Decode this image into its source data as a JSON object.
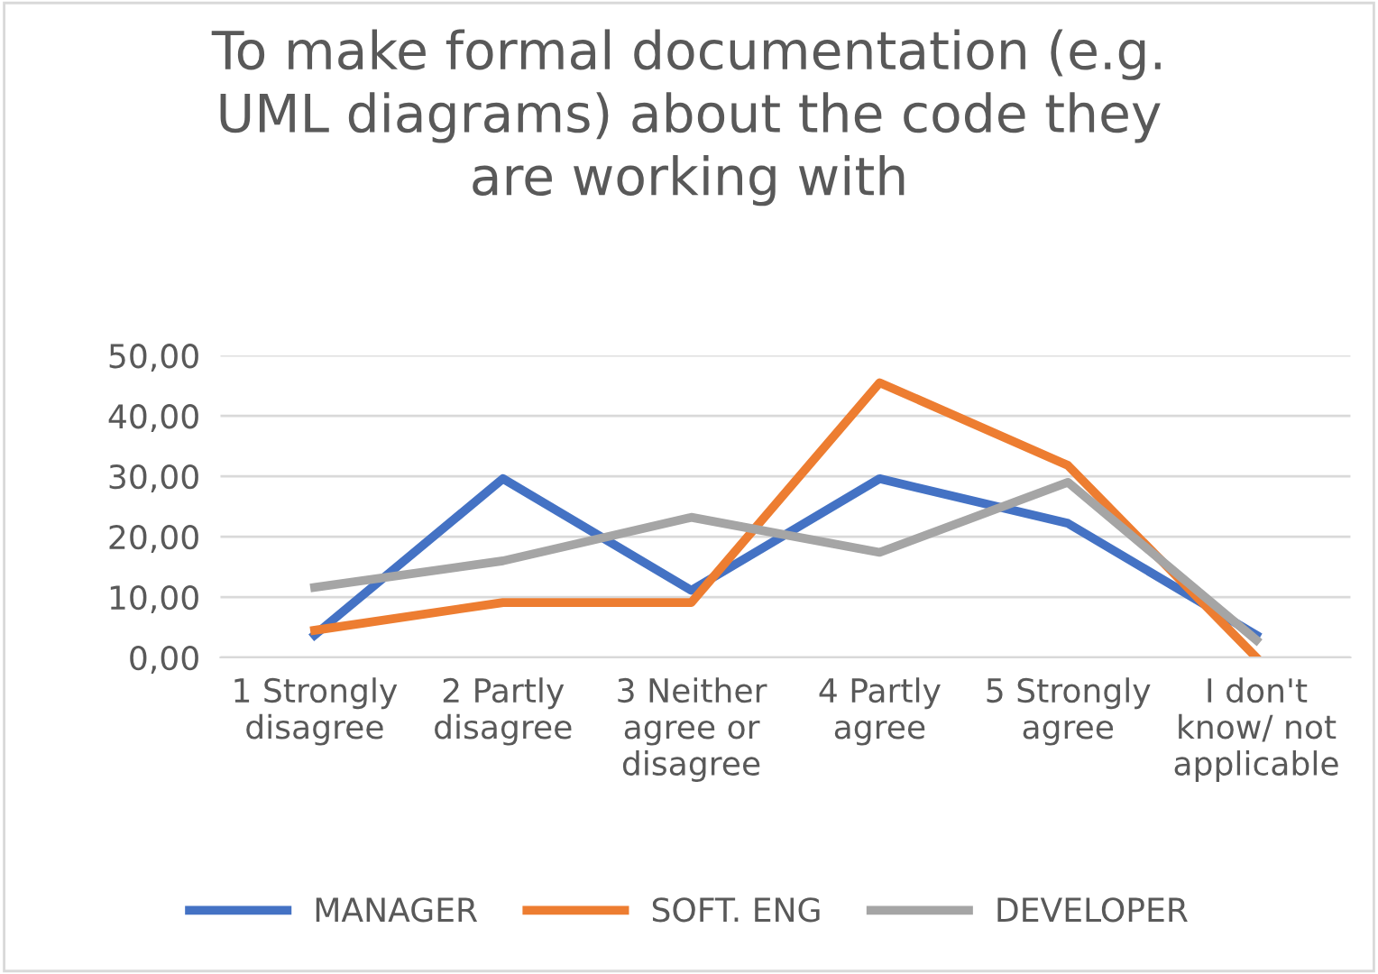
{
  "chart_data": {
    "type": "line",
    "title": "To make formal documentation (e.g. UML diagrams) about the code they are working with",
    "categories": [
      "1 Strongly disagree",
      "2 Partly disagree",
      "3 Neither agree or disagree",
      "4 Partly agree",
      "5 Strongly agree",
      "I don't know/ not applicable"
    ],
    "series": [
      {
        "name": "MANAGER",
        "color": "#4472c4",
        "values": [
          3.7,
          29.6,
          11.1,
          29.6,
          22.2,
          3.7
        ]
      },
      {
        "name": "SOFT. ENG",
        "color": "#ed7d31",
        "values": [
          4.5,
          9.1,
          9.1,
          45.5,
          31.8,
          0
        ]
      },
      {
        "name": "DEVELOPER",
        "color": "#a5a5a5",
        "values": [
          11.6,
          16.0,
          23.2,
          17.4,
          29.0,
          2.9
        ]
      }
    ],
    "ylim": [
      0,
      50
    ],
    "yticks": [
      {
        "value": 0,
        "label": "0,00"
      },
      {
        "value": 10,
        "label": "10,00"
      },
      {
        "value": 20,
        "label": "20,00"
      },
      {
        "value": 30,
        "label": "30,00"
      },
      {
        "value": 40,
        "label": "40,00"
      },
      {
        "value": 50,
        "label": "50,00"
      }
    ],
    "grid": "y",
    "legend": "bottom",
    "marker": "none",
    "line_style": "solid"
  }
}
